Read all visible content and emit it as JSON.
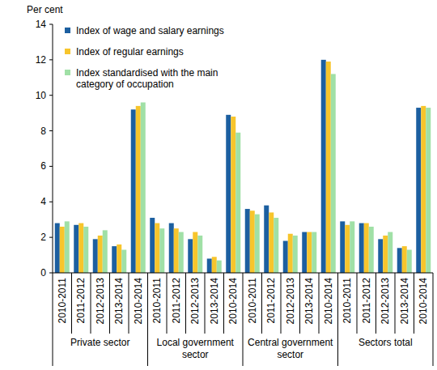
{
  "chart_data": {
    "type": "bar",
    "y_label": "Per cent",
    "categories": [
      "2010-2011",
      "2011-2012",
      "2012-2013",
      "2013-2014",
      "2010-2014",
      "2010-2011",
      "2011-2012",
      "2012-2013",
      "2013-2014",
      "2010-2014",
      "2010-2011",
      "2011-2012",
      "2012-2013",
      "2013-2014",
      "2010-2014",
      "2010-2011",
      "2011-2012",
      "2012-2013",
      "2013-2014",
      "2010-2014"
    ],
    "groups": [
      "Private sector",
      "Local government sector",
      "Central government sector",
      "Sectors total"
    ],
    "series": [
      {
        "name": "Index of wage and salary earnings",
        "color": "#1c5fa0",
        "values": [
          2.8,
          2.7,
          1.9,
          1.5,
          9.2,
          3.1,
          2.8,
          1.9,
          0.8,
          8.9,
          3.6,
          3.8,
          1.8,
          2.3,
          12.0,
          2.9,
          2.8,
          1.9,
          1.4,
          9.3
        ]
      },
      {
        "name": "Index of regular earnings",
        "color": "#f7c52c",
        "values": [
          2.6,
          2.8,
          2.1,
          1.6,
          9.4,
          2.8,
          2.5,
          2.3,
          0.9,
          8.8,
          3.5,
          3.4,
          2.2,
          2.3,
          11.9,
          2.7,
          2.8,
          2.1,
          1.5,
          9.4
        ]
      },
      {
        "name": "Index standardised with the main category of occupation",
        "color": "#a0e0a6",
        "values": [
          2.9,
          2.6,
          2.4,
          1.3,
          9.6,
          2.5,
          2.3,
          2.1,
          0.7,
          7.9,
          3.3,
          3.1,
          2.1,
          2.3,
          11.2,
          2.9,
          2.6,
          2.3,
          1.3,
          9.3
        ]
      }
    ],
    "ylim": [
      0,
      14
    ],
    "yticks": [
      0,
      2,
      4,
      6,
      8,
      10,
      12,
      14
    ],
    "grid": false,
    "legend": "top-left"
  }
}
